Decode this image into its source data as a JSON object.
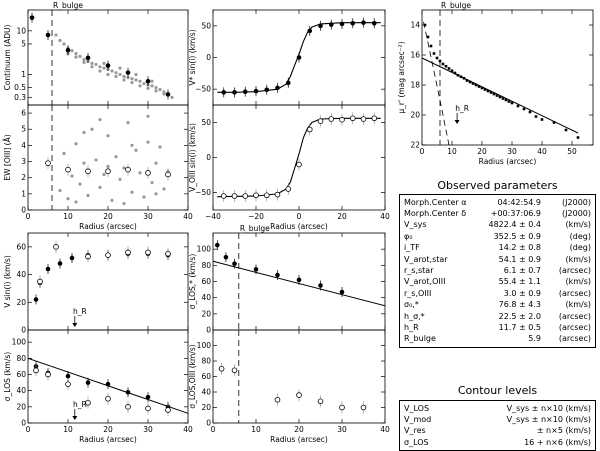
{
  "chart_data": [
    {
      "id": "continuum",
      "type": "scatter",
      "ylabel": "Continuum (ADU)",
      "xlim": [
        0,
        40
      ],
      "ylim_log": [
        0.2,
        30
      ],
      "x_ticks": [
        "0",
        "10",
        "20",
        "30",
        "40"
      ],
      "y_ticks": [
        {
          "v": 10,
          "l": "10"
        },
        {
          "v": 5,
          "l": "5"
        },
        {
          "v": 1,
          "l": "1"
        },
        {
          "v": 0.5,
          "l": "0.5"
        },
        {
          "v": 0.3,
          "l": "0.3"
        }
      ],
      "annotation": "R_bulge",
      "rbulge": 6,
      "grey_points": [
        [
          7,
          8
        ],
        [
          8,
          6
        ],
        [
          9,
          5
        ],
        [
          10,
          4
        ],
        [
          11,
          3.5
        ],
        [
          12,
          3
        ],
        [
          13,
          2.6
        ],
        [
          14,
          2.2
        ],
        [
          15,
          2
        ],
        [
          16,
          1.8
        ],
        [
          17,
          1.7
        ],
        [
          18,
          1.5
        ],
        [
          19,
          1.4
        ],
        [
          20,
          1.3
        ],
        [
          21,
          1.2
        ],
        [
          22,
          1.1
        ],
        [
          23,
          1.0
        ],
        [
          24,
          0.9
        ],
        [
          25,
          0.85
        ],
        [
          26,
          0.8
        ],
        [
          27,
          0.75
        ],
        [
          28,
          0.7
        ],
        [
          29,
          0.62
        ],
        [
          30,
          0.58
        ],
        [
          31,
          0.55
        ],
        [
          32,
          0.5
        ],
        [
          33,
          0.45
        ],
        [
          34,
          0.4
        ],
        [
          10,
          3
        ],
        [
          12,
          2.5
        ],
        [
          14,
          1.9
        ],
        [
          16,
          1.5
        ],
        [
          18,
          1.2
        ],
        [
          20,
          1.0
        ],
        [
          22,
          0.9
        ],
        [
          24,
          0.75
        ],
        [
          26,
          0.65
        ],
        [
          28,
          0.55
        ],
        [
          30,
          0.48
        ],
        [
          32,
          0.42
        ],
        [
          34,
          0.36
        ],
        [
          15,
          2.5
        ],
        [
          19,
          1.8
        ],
        [
          23,
          1.4
        ],
        [
          27,
          1.0
        ],
        [
          31,
          0.7
        ],
        [
          35,
          0.35
        ],
        [
          36,
          0.3
        ]
      ],
      "black_points": [
        [
          1,
          20
        ],
        [
          5,
          8
        ],
        [
          10,
          3.6
        ],
        [
          15,
          2.4
        ],
        [
          20,
          1.6
        ],
        [
          25,
          1.1
        ],
        [
          30,
          0.7
        ],
        [
          35,
          0.35
        ]
      ]
    },
    {
      "id": "ew_oiii",
      "type": "scatter",
      "ylabel": "EW [OIII] (Å)",
      "xlabel": "Radius (arcsec)",
      "xlim": [
        0,
        40
      ],
      "ylim": [
        0,
        6.5
      ],
      "x_ticks": [
        "0",
        "10",
        "20",
        "30",
        "40"
      ],
      "y_ticks": [
        "0",
        "1",
        "2",
        "3",
        "4",
        "5",
        "6"
      ],
      "rbulge": 6,
      "grey_points": [
        [
          8,
          1.2
        ],
        [
          9,
          3.5
        ],
        [
          10,
          0.7
        ],
        [
          11,
          2.1
        ],
        [
          12,
          4.1
        ],
        [
          13,
          1.6
        ],
        [
          14,
          2.9
        ],
        [
          15,
          0.9
        ],
        [
          16,
          5.0
        ],
        [
          17,
          3.1
        ],
        [
          18,
          1.4
        ],
        [
          19,
          2.2
        ],
        [
          20,
          4.6
        ],
        [
          21,
          0.6
        ],
        [
          22,
          3.3
        ],
        [
          23,
          1.9
        ],
        [
          24,
          2.6
        ],
        [
          25,
          5.4
        ],
        [
          26,
          1.1
        ],
        [
          27,
          3.7
        ],
        [
          28,
          2.3
        ],
        [
          29,
          0.8
        ],
        [
          30,
          4.2
        ],
        [
          31,
          1.7
        ],
        [
          32,
          2.9
        ],
        [
          33,
          3.9
        ],
        [
          34,
          1.3
        ],
        [
          35,
          2.4
        ],
        [
          12,
          0.5
        ],
        [
          18,
          5.6
        ],
        [
          24,
          0.4
        ],
        [
          30,
          5.8
        ],
        [
          14,
          4.8
        ],
        [
          20,
          2.7
        ],
        [
          26,
          4.0
        ],
        [
          32,
          1.0
        ]
      ],
      "open_points": [
        [
          5,
          2.9
        ],
        [
          10,
          2.5
        ],
        [
          15,
          2.4
        ],
        [
          20,
          2.4
        ],
        [
          25,
          2.5
        ],
        [
          30,
          2.3
        ],
        [
          35,
          2.2
        ]
      ]
    },
    {
      "id": "vstar_sini",
      "type": "line",
      "ylabel": "V* sin(i) (km/s)",
      "xlim": [
        -40,
        40
      ],
      "ylim": [
        -75,
        75
      ],
      "x_ticks": [
        "−40",
        "−20",
        "0",
        "20",
        "40"
      ],
      "y_ticks": [
        "−50",
        "0",
        "50"
      ],
      "model_x": [
        -38,
        -30,
        -20,
        -10,
        -6,
        -4,
        -2,
        0,
        2,
        4,
        6,
        10,
        20,
        30,
        38
      ],
      "model_y": [
        -55,
        -55,
        -54,
        -50,
        -42,
        -30,
        -12,
        5,
        25,
        40,
        48,
        53,
        55,
        55,
        55
      ],
      "black_points": [
        [
          -35,
          -55
        ],
        [
          -30,
          -55
        ],
        [
          -25,
          -54
        ],
        [
          -20,
          -53
        ],
        [
          -15,
          -51
        ],
        [
          -10,
          -48
        ],
        [
          -5,
          -40
        ],
        [
          0,
          0
        ],
        [
          5,
          42
        ],
        [
          10,
          50
        ],
        [
          15,
          52
        ],
        [
          20,
          53
        ],
        [
          25,
          54
        ],
        [
          30,
          55
        ],
        [
          35,
          54
        ]
      ]
    },
    {
      "id": "v_oiii_sini",
      "type": "line",
      "ylabel": "V_OIII sin(i) (km/s)",
      "xlabel": "Radius (arcsec)",
      "xlim": [
        -40,
        40
      ],
      "ylim": [
        -75,
        75
      ],
      "x_ticks": [
        "−40",
        "−20",
        "0",
        "20",
        "40"
      ],
      "y_ticks": [
        "−50",
        "0",
        "50"
      ],
      "model_x": [
        -38,
        -20,
        -10,
        -6,
        -4,
        -2,
        0,
        2,
        4,
        6,
        10,
        20,
        38
      ],
      "model_y": [
        -56,
        -55,
        -52,
        -45,
        -35,
        -15,
        5,
        28,
        42,
        50,
        55,
        56,
        56
      ],
      "open_points": [
        [
          -35,
          -55
        ],
        [
          -30,
          -55
        ],
        [
          -25,
          -55
        ],
        [
          -20,
          -54
        ],
        [
          -15,
          -54
        ],
        [
          -10,
          -53
        ],
        [
          -5,
          -45
        ],
        [
          0,
          -10
        ],
        [
          5,
          40
        ],
        [
          10,
          52
        ],
        [
          15,
          55
        ],
        [
          20,
          54
        ],
        [
          25,
          56
        ],
        [
          30,
          55
        ],
        [
          35,
          56
        ]
      ]
    },
    {
      "id": "surface_brightness",
      "type": "line",
      "ylabel": "μ_r' (mag arcsec⁻²)",
      "xlabel": "Radius (arcsec)",
      "xlim": [
        0,
        57
      ],
      "ylim": [
        22,
        13
      ],
      "x_ticks": [
        "0",
        "10",
        "20",
        "30",
        "40",
        "50"
      ],
      "y_ticks": [
        "14",
        "16",
        "18",
        "20",
        "22"
      ],
      "annotation": "R_bulge",
      "annotation2": "h_R",
      "rbulge": 6,
      "hr": 11.7,
      "points": [
        [
          1,
          14
        ],
        [
          2,
          14.8
        ],
        [
          3,
          15.4
        ],
        [
          4,
          15.9
        ],
        [
          5,
          16.2
        ],
        [
          6,
          16.4
        ],
        [
          7,
          16.6
        ],
        [
          8,
          16.75
        ],
        [
          9,
          16.9
        ],
        [
          10,
          17.05
        ],
        [
          11,
          17.2
        ],
        [
          12,
          17.35
        ],
        [
          13,
          17.45
        ],
        [
          14,
          17.55
        ],
        [
          15,
          17.7
        ],
        [
          16,
          17.8
        ],
        [
          17,
          17.9
        ],
        [
          18,
          18.0
        ],
        [
          19,
          18.1
        ],
        [
          20,
          18.2
        ],
        [
          21,
          18.3
        ],
        [
          22,
          18.4
        ],
        [
          23,
          18.5
        ],
        [
          24,
          18.6
        ],
        [
          25,
          18.7
        ],
        [
          26,
          18.8
        ],
        [
          27,
          18.9
        ],
        [
          28,
          19.0
        ],
        [
          29,
          19.1
        ],
        [
          30,
          19.2
        ],
        [
          32,
          19.4
        ],
        [
          34,
          19.6
        ],
        [
          36,
          19.8
        ],
        [
          38,
          20.1
        ],
        [
          40,
          20.3
        ],
        [
          44,
          20.5
        ],
        [
          48,
          21.0
        ],
        [
          52,
          21.5
        ]
      ]
    },
    {
      "id": "vstar_rotation",
      "type": "line",
      "ylabel": "V sin(i) (km/s)",
      "xlim": [
        0,
        40
      ],
      "ylim": [
        0,
        70
      ],
      "x_ticks": [
        "0",
        "10",
        "20",
        "30",
        "40"
      ],
      "y_ticks": [
        "0",
        "20",
        "40",
        "60"
      ],
      "annotation": "h_R",
      "hr": 11.7,
      "black_points": [
        [
          2,
          22
        ],
        [
          3,
          34
        ],
        [
          5,
          44
        ],
        [
          8,
          48
        ],
        [
          11,
          52
        ],
        [
          15,
          54
        ],
        [
          20,
          54
        ],
        [
          25,
          55
        ],
        [
          30,
          55
        ],
        [
          35,
          54
        ]
      ],
      "open_points": [
        [
          3,
          35
        ],
        [
          7,
          60
        ],
        [
          15,
          53
        ],
        [
          20,
          54
        ],
        [
          25,
          56
        ],
        [
          30,
          56
        ],
        [
          35,
          55
        ]
      ]
    },
    {
      "id": "sigma_los",
      "type": "line",
      "ylabel": "σ_LOS (km/s)",
      "xlabel": "Radius (arcsec)",
      "xlim": [
        0,
        40
      ],
      "ylim": [
        0,
        115
      ],
      "x_ticks": [
        "0",
        "10",
        "20",
        "30",
        "40"
      ],
      "y_ticks": [
        "0",
        "20",
        "40",
        "60",
        "80",
        "100"
      ],
      "annotation": "h_R",
      "model": [
        [
          0,
          80
        ],
        [
          40,
          12
        ]
      ],
      "black_points": [
        [
          2,
          70
        ],
        [
          5,
          62
        ],
        [
          10,
          58
        ],
        [
          15,
          50
        ],
        [
          20,
          48
        ],
        [
          25,
          38
        ],
        [
          30,
          32
        ],
        [
          35,
          20
        ]
      ],
      "open_points": [
        [
          2,
          65
        ],
        [
          5,
          60
        ],
        [
          10,
          48
        ],
        [
          15,
          25
        ],
        [
          20,
          30
        ],
        [
          25,
          20
        ],
        [
          30,
          18
        ],
        [
          35,
          16
        ]
      ]
    },
    {
      "id": "sigma_los_star",
      "type": "line",
      "ylabel": "σ_LOS,* (km/s)",
      "xlim": [
        0,
        40
      ],
      "ylim": [
        0,
        120
      ],
      "x_ticks": [
        "0",
        "10",
        "20",
        "30",
        "40"
      ],
      "y_ticks": [
        "0",
        "20",
        "40",
        "60",
        "80",
        "100"
      ],
      "annotation": "R_bulge",
      "rbulge": 6,
      "model": [
        [
          0,
          85
        ],
        [
          40,
          30
        ]
      ],
      "black_points": [
        [
          1,
          105
        ],
        [
          3,
          90
        ],
        [
          5,
          82
        ],
        [
          10,
          75
        ],
        [
          15,
          68
        ],
        [
          20,
          62
        ],
        [
          25,
          55
        ],
        [
          30,
          47
        ]
      ]
    },
    {
      "id": "sigma_los_oiii",
      "type": "scatter",
      "ylabel": "σ_LOS,OIII (km/s)",
      "xlabel": "Radius (arcsec)",
      "xlim": [
        0,
        40
      ],
      "ylim": [
        0,
        120
      ],
      "x_ticks": [
        "0",
        "10",
        "20",
        "30",
        "40"
      ],
      "y_ticks": [
        "0",
        "20",
        "40",
        "60",
        "80",
        "100"
      ],
      "rbulge": 6,
      "open_points": [
        [
          2,
          70
        ],
        [
          5,
          68
        ],
        [
          15,
          30
        ],
        [
          20,
          36
        ],
        [
          25,
          28
        ],
        [
          30,
          20
        ],
        [
          35,
          20
        ]
      ]
    }
  ],
  "params": {
    "title": "Observed parameters",
    "rows": [
      {
        "k": "Morph.Center α",
        "v": "04:42:54.9",
        "u": "(J2000)"
      },
      {
        "k": "Morph.Center δ",
        "v": "+00:37:06.9",
        "u": "(J2000)"
      },
      {
        "k": "V_sys",
        "v": "4822.4 ± 0.4",
        "u": "(km/s)"
      },
      {
        "k": "φ₀",
        "v": "352.5 ± 0.9",
        "u": "(deg)"
      },
      {
        "k": "i_TF",
        "v": "14.2 ± 0.8",
        "u": "(deg)"
      },
      {
        "k": "V_arot,star",
        "v": "54.1 ± 0.9",
        "u": "(km/s)"
      },
      {
        "k": "r_s,star",
        "v": "6.1 ± 0.7",
        "u": "(arcsec)"
      },
      {
        "k": "V_arot,OIII",
        "v": "55.4 ± 1.1",
        "u": "(km/s)"
      },
      {
        "k": "r_s,OIII",
        "v": "3.0 ± 0.9",
        "u": "(arcsec)"
      },
      {
        "k": "σ₀,*",
        "v": "76.8 ± 4.3",
        "u": "(km/s)"
      },
      {
        "k": "h_σ,*",
        "v": "22.5 ± 2.0",
        "u": "(arcsec)"
      },
      {
        "k": "h_R",
        "v": "11.7 ± 0.5",
        "u": "(arcsec)"
      },
      {
        "k": "R_bulge",
        "v": "5.9",
        "u": "(arcsec)"
      }
    ]
  },
  "contours": {
    "title": "Contour levels",
    "rows": [
      {
        "k": "V_LOS",
        "v": "V_sys ± n×10  (km/s)"
      },
      {
        "k": "V_mod",
        "v": "V_sys ± n×10  (km/s)"
      },
      {
        "k": "V_res",
        "v": "± n×5  (km/s)"
      },
      {
        "k": "σ_LOS",
        "v": "16 + n×6  (km/s)"
      }
    ]
  }
}
